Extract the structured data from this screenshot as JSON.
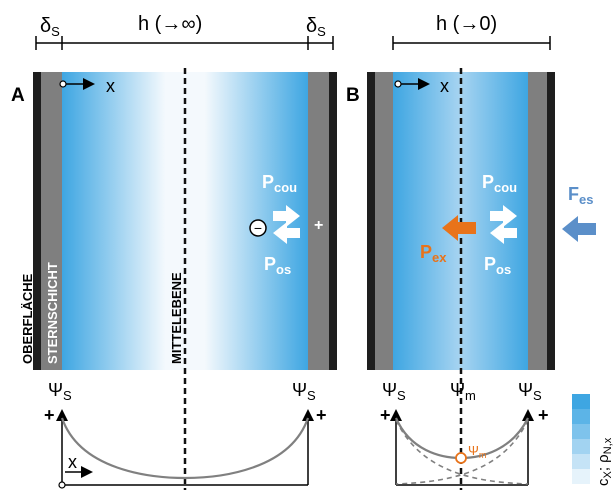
{
  "top_left": {
    "delta": "δ",
    "delta_sub": "S",
    "h_label": "h (→∞)"
  },
  "top_right": {
    "h_label": "h (→0)"
  },
  "panel_a": {
    "letter": "A",
    "x_label": "x",
    "surface_label": "OBERFLÄCHE",
    "stern_label": "STERNSCHICHT",
    "midplane_label": "MITTELEBENE",
    "p_cou": "P",
    "p_cou_sub": "cou",
    "p_os": "P",
    "p_os_sub": "os",
    "minus": "−",
    "plus": "+"
  },
  "panel_b": {
    "letter": "B",
    "x_label": "x",
    "p_cou": "P",
    "p_cou_sub": "cou",
    "p_os": "P",
    "p_os_sub": "os",
    "p_ex": "P",
    "p_ex_sub": "ex",
    "f_es": "F",
    "f_es_sub": "es"
  },
  "potential": {
    "psi": "Ψ",
    "psi_s_sub": "S",
    "psi_m_sub": "m",
    "plus": "+",
    "x_label": "x"
  },
  "legend": {
    "label_c": "c",
    "label_c_sub": "X",
    "label_rho": "; ρ",
    "label_rho_sub": "N,x"
  },
  "colors": {
    "surface": "#1e1e1e",
    "stern": "#7f7f7f",
    "ion_blue": "#4aa8e0",
    "arrow_blue": "#5b8fc9",
    "arrow_orange": "#e8731a",
    "curve": "#808080"
  }
}
